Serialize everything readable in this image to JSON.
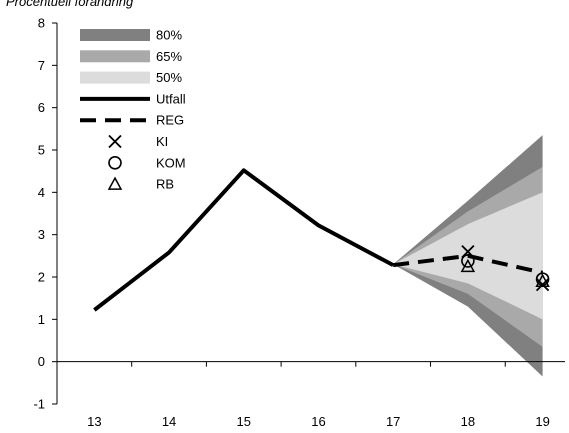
{
  "chart_data": {
    "type": "line",
    "subtitle": "Procentuell förändring",
    "x": [
      13,
      14,
      15,
      16,
      17,
      18,
      19
    ],
    "ylim": [
      -1,
      8
    ],
    "yticks": [
      -1,
      0,
      1,
      2,
      3,
      4,
      5,
      6,
      7,
      8
    ],
    "grid": false,
    "legend_position": "top-left",
    "legend": [
      "80%",
      "65%",
      "50%",
      "Utfall",
      "REG",
      "KI",
      "KOM",
      "RB"
    ],
    "fan": {
      "x": [
        17,
        18,
        19
      ],
      "bands": [
        {
          "name": "80%",
          "color": "#808080",
          "lower": [
            2.3,
            1.3,
            -0.35
          ],
          "upper": [
            2.3,
            3.8,
            5.35
          ]
        },
        {
          "name": "65%",
          "color": "#a9a9a9",
          "lower": [
            2.3,
            1.6,
            0.35
          ],
          "upper": [
            2.3,
            3.55,
            4.6
          ]
        },
        {
          "name": "50%",
          "color": "#dcdcdc",
          "lower": [
            2.3,
            1.85,
            1.0
          ],
          "upper": [
            2.3,
            3.25,
            4.0
          ]
        }
      ]
    },
    "series": [
      {
        "name": "Utfall",
        "style": "solid",
        "color": "#000000",
        "x": [
          13,
          14,
          15,
          16,
          17
        ],
        "values": [
          1.22,
          2.58,
          4.52,
          3.22,
          2.28
        ]
      },
      {
        "name": "REG",
        "style": "dashed",
        "color": "#000000",
        "x": [
          17,
          18,
          19
        ],
        "values": [
          2.28,
          2.5,
          2.1
        ]
      },
      {
        "name": "KI",
        "style": "marker-x",
        "color": "#000000",
        "x": [
          18,
          19
        ],
        "values": [
          2.6,
          1.82
        ]
      },
      {
        "name": "KOM",
        "style": "marker-circle",
        "color": "#000000",
        "x": [
          18,
          19
        ],
        "values": [
          2.38,
          1.95
        ]
      },
      {
        "name": "RB",
        "style": "marker-triangle",
        "color": "#000000",
        "x": [
          18,
          19
        ],
        "values": [
          2.25,
          1.9
        ]
      }
    ]
  }
}
